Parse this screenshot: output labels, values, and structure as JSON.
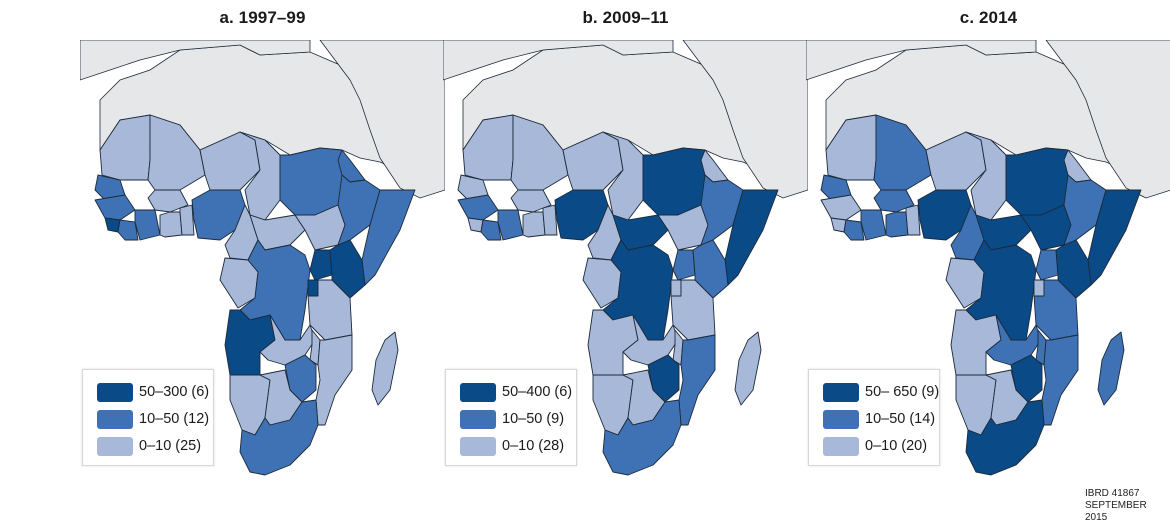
{
  "colors": {
    "high": "#0a4a87",
    "mid": "#3f72b4",
    "low": "#a7b8d9",
    "non_ssa": "#e6e7e9",
    "border": "#1c2a3a",
    "sea": "#ffffff"
  },
  "panels": [
    {
      "title": "a. 1997–99",
      "legend": [
        {
          "label": "50–300 (6)",
          "category": "high"
        },
        {
          "label": "10–50 (12)",
          "category": "mid"
        },
        {
          "label": "0–10 (25)",
          "category": "low"
        }
      ],
      "countries": {
        "mauritania": "low",
        "mali": "low",
        "niger": "low",
        "chad": "low",
        "sudan": "mid",
        "senegal": "mid",
        "guinea": "mid",
        "sierra_leone": "high",
        "liberia": "mid",
        "cote_divoire": "mid",
        "burkina": "low",
        "ghana": "low",
        "togo_benin": "low",
        "nigeria": "mid",
        "cameroon": "low",
        "car": "low",
        "south_sudan": "low",
        "eritrea": "mid",
        "ethiopia": "mid",
        "somalia": "mid",
        "gabon_congo": "low",
        "drc": "mid",
        "uganda": "high",
        "kenya": "high",
        "rwanda_burundi": "high",
        "tanzania": "low",
        "angola": "high",
        "zambia": "low",
        "malawi": "low",
        "mozambique": "low",
        "zimbabwe": "mid",
        "namibia": "low",
        "botswana": "low",
        "south_africa": "mid",
        "madagascar": "low"
      }
    },
    {
      "title": "b. 2009–11",
      "legend": [
        {
          "label": "50–400 (6)",
          "category": "high"
        },
        {
          "label": "10–50 (9)",
          "category": "mid"
        },
        {
          "label": "0–10 (28)",
          "category": "low"
        }
      ],
      "countries": {
        "mauritania": "low",
        "mali": "low",
        "niger": "low",
        "chad": "low",
        "sudan": "high",
        "senegal": "low",
        "guinea": "mid",
        "sierra_leone": "low",
        "liberia": "mid",
        "cote_divoire": "mid",
        "burkina": "low",
        "ghana": "low",
        "togo_benin": "low",
        "nigeria": "high",
        "cameroon": "low",
        "car": "high",
        "south_sudan": "low",
        "eritrea": "low",
        "ethiopia": "mid",
        "somalia": "high",
        "gabon_congo": "low",
        "drc": "high",
        "uganda": "mid",
        "kenya": "mid",
        "rwanda_burundi": "low",
        "tanzania": "low",
        "angola": "low",
        "zambia": "low",
        "malawi": "low",
        "mozambique": "mid",
        "zimbabwe": "high",
        "namibia": "low",
        "botswana": "low",
        "south_africa": "mid",
        "madagascar": "low"
      }
    },
    {
      "title": "c. 2014",
      "legend": [
        {
          "label": "50– 650 (9)",
          "category": "high"
        },
        {
          "label": "10–50 (14)",
          "category": "mid"
        },
        {
          "label": "0–10 (20)",
          "category": "low"
        }
      ],
      "countries": {
        "mauritania": "low",
        "mali": "mid",
        "niger": "low",
        "chad": "low",
        "sudan": "high",
        "senegal": "mid",
        "guinea": "low",
        "sierra_leone": "low",
        "liberia": "mid",
        "cote_divoire": "mid",
        "burkina": "mid",
        "ghana": "mid",
        "togo_benin": "low",
        "nigeria": "high",
        "cameroon": "mid",
        "car": "high",
        "south_sudan": "high",
        "eritrea": "low",
        "ethiopia": "mid",
        "somalia": "high",
        "gabon_congo": "low",
        "drc": "high",
        "uganda": "mid",
        "kenya": "high",
        "rwanda_burundi": "low",
        "tanzania": "mid",
        "angola": "low",
        "zambia": "mid",
        "malawi": "mid",
        "mozambique": "mid",
        "zimbabwe": "high",
        "namibia": "low",
        "botswana": "low",
        "south_africa": "high",
        "madagascar": "mid"
      }
    }
  ],
  "credit": {
    "line1": "IBRD 41867",
    "line2": "SEPTEMBER 2015"
  }
}
